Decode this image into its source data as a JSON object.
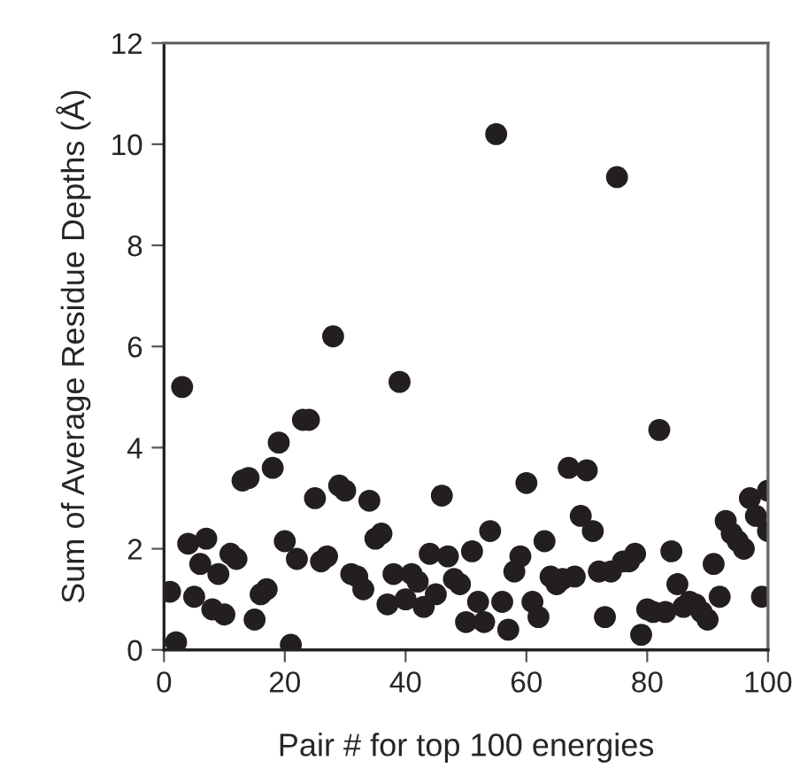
{
  "chart_data": {
    "type": "scatter",
    "xlabel": "Pair # for top 100 energies",
    "ylabel": "Sum of Average Residue Depths (Å)",
    "xlim": [
      0,
      100
    ],
    "xticks": [
      0,
      20,
      40,
      60,
      80,
      100
    ],
    "ylim": [
      0,
      12
    ],
    "yticks": [
      0,
      2,
      4,
      6,
      8,
      10,
      12
    ],
    "grid": false,
    "marker": "circle",
    "series": [
      {
        "color": "#231f20",
        "x": [
          1,
          2,
          3,
          4,
          5,
          6,
          7,
          8,
          9,
          10,
          11,
          12,
          13,
          14,
          15,
          16,
          17,
          18,
          19,
          20,
          21,
          22,
          23,
          24,
          25,
          26,
          27,
          28,
          29,
          30,
          31,
          32,
          33,
          34,
          35,
          36,
          37,
          38,
          39,
          40,
          41,
          42,
          43,
          44,
          45,
          46,
          47,
          48,
          49,
          50,
          51,
          52,
          53,
          54,
          55,
          56,
          57,
          58,
          59,
          60,
          61,
          62,
          63,
          64,
          65,
          66,
          67,
          68,
          69,
          70,
          71,
          72,
          73,
          74,
          75,
          76,
          77,
          78,
          79,
          80,
          81,
          82,
          83,
          84,
          85,
          86,
          87,
          88,
          89,
          90,
          91,
          92,
          93,
          94,
          95,
          96,
          97,
          98,
          99,
          100,
          100
        ],
        "values": [
          1.15,
          0.15,
          5.2,
          2.1,
          1.05,
          1.7,
          2.2,
          0.8,
          1.5,
          0.7,
          1.9,
          1.8,
          3.35,
          3.4,
          0.6,
          1.1,
          1.2,
          3.6,
          4.1,
          2.15,
          0.1,
          1.8,
          4.55,
          4.55,
          3.0,
          1.75,
          1.85,
          6.2,
          3.25,
          3.15,
          1.5,
          1.45,
          1.2,
          2.95,
          2.2,
          2.3,
          0.9,
          1.5,
          5.3,
          1.0,
          1.5,
          1.35,
          0.85,
          1.9,
          1.1,
          3.05,
          1.85,
          1.4,
          1.3,
          0.55,
          1.95,
          0.95,
          0.55,
          2.35,
          10.2,
          0.95,
          0.4,
          1.55,
          1.85,
          3.3,
          0.95,
          0.65,
          2.15,
          1.45,
          1.3,
          1.4,
          3.6,
          1.45,
          2.65,
          3.55,
          2.35,
          1.55,
          0.65,
          1.55,
          9.35,
          1.75,
          1.75,
          1.9,
          0.3,
          0.8,
          0.75,
          4.35,
          0.75,
          1.95,
          1.3,
          0.85,
          0.95,
          0.9,
          0.75,
          0.6,
          1.7,
          1.05,
          2.55,
          2.3,
          2.15,
          2.0,
          3.0,
          2.65,
          1.05,
          3.15,
          2.35
        ]
      }
    ]
  }
}
